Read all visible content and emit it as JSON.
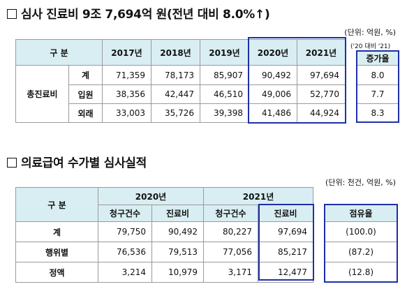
{
  "section1": {
    "title": "심사 진료비 9조 7,694억 원(전년 대비 8.0%↑)",
    "unit": "(단위: 억원, %)",
    "header_label": "구  분",
    "years": [
      "2017년",
      "2018년",
      "2019년",
      "2020년",
      "2021년"
    ],
    "change_period": "('20 대비 '21)",
    "change_label": "증가율",
    "group_label": "총진료비",
    "rows": [
      {
        "label": "계",
        "values": [
          "71,359",
          "78,173",
          "85,907",
          "90,492",
          "97,694"
        ],
        "change": "8.0"
      },
      {
        "label": "입원",
        "values": [
          "38,356",
          "42,447",
          "46,510",
          "49,006",
          "52,770"
        ],
        "change": "7.7"
      },
      {
        "label": "외래",
        "values": [
          "33,003",
          "35,726",
          "39,398",
          "41,486",
          "44,924"
        ],
        "change": "8.3"
      }
    ]
  },
  "section2": {
    "title": "의료급여 수가별 심사실적",
    "unit": "(단위: 천건, 억원, %)",
    "header_label": "구  분",
    "year_2020": "2020년",
    "year_2021": "2021년",
    "col_claims": "청구건수",
    "col_cost": "진료비",
    "col_share": "점유율",
    "rows": [
      {
        "label": "계",
        "claims_2020": "79,750",
        "cost_2020": "90,492",
        "claims_2021": "80,227",
        "cost_2021": "97,694",
        "share": "(100.0)"
      },
      {
        "label": "행위별",
        "claims_2020": "76,536",
        "cost_2020": "79,513",
        "claims_2021": "77,056",
        "cost_2021": "85,217",
        "share": "(87.2)"
      },
      {
        "label": "정액",
        "claims_2020": "3,214",
        "cost_2020": "10,979",
        "claims_2021": "3,171",
        "cost_2021": "12,477",
        "share": "(12.8)"
      }
    ]
  }
}
